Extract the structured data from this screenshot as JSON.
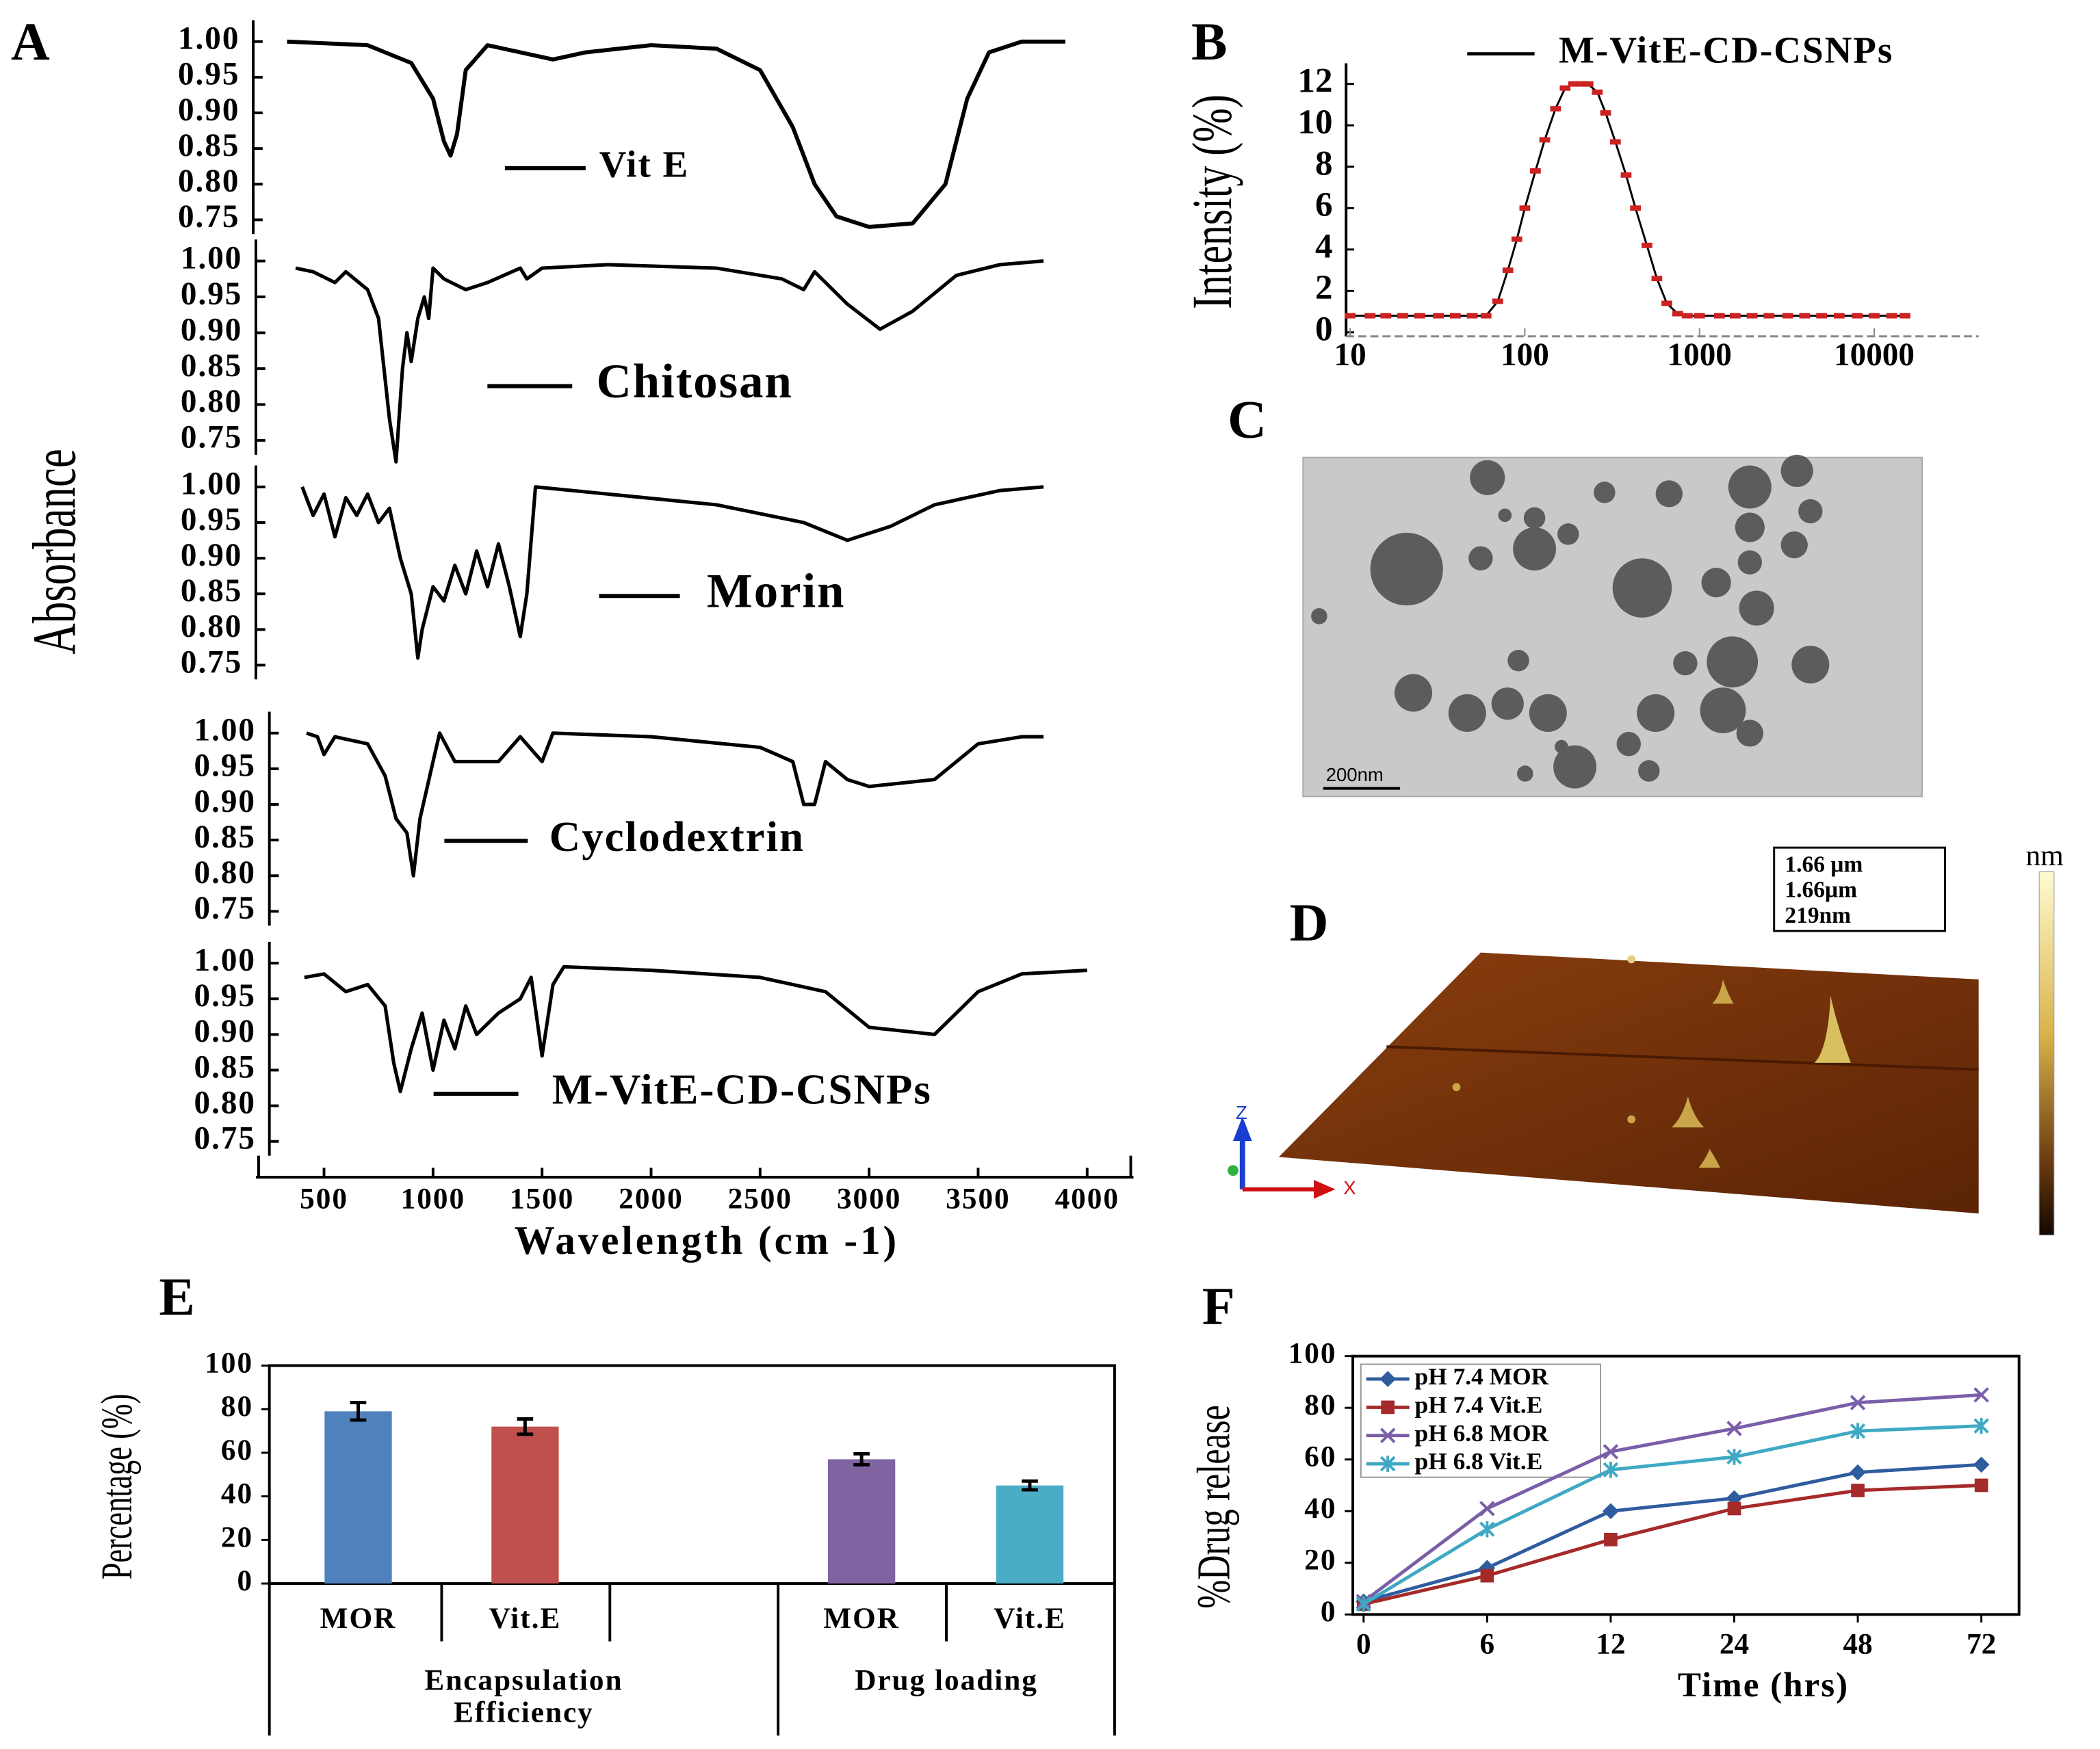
{
  "chart_data": [
    {
      "type": "line",
      "panel": "A",
      "y_label": "Absorbance",
      "xlim": [
        200,
        4200
      ],
      "ylim": [
        0.73,
        1.03
      ],
      "yticks": [
        {
          "value": 1,
          "label": "1.00"
        },
        0.95,
        {
          "value": 0.9,
          "label": "0.90"
        },
        0.85,
        {
          "value": 0.8,
          "label": "0.80"
        },
        0.75
      ],
      "series": [
        {
          "name": "Vit E",
          "color": "#000000",
          "x": [
            330,
            700,
            900,
            1000,
            1050,
            1080,
            1110,
            1150,
            1250,
            1400,
            1550,
            1700,
            2000,
            2300,
            2500,
            2650,
            2750,
            2850,
            3000,
            3200,
            3350,
            3450,
            3550,
            3700,
            3900
          ],
          "values": [
            1.0,
            0.995,
            0.97,
            0.92,
            0.86,
            0.84,
            0.87,
            0.96,
            0.995,
            0.985,
            0.975,
            0.985,
            0.995,
            0.99,
            0.96,
            0.88,
            0.8,
            0.755,
            0.74,
            0.745,
            0.8,
            0.92,
            0.985,
            1.0,
            1.0
          ]
        }
      ]
    },
    {
      "type": "line",
      "xlim": [
        200,
        4200
      ],
      "ylim": [
        0.73,
        1.03
      ],
      "yticks": [
        {
          "value": 1,
          "label": "1.00"
        },
        0.95,
        {
          "value": 0.9,
          "label": "0.90"
        },
        0.85,
        {
          "value": 0.8,
          "label": "0.80"
        },
        0.75
      ],
      "series": [
        {
          "name": "Chitosan",
          "color": "#000000",
          "x": [
            370,
            450,
            550,
            600,
            700,
            750,
            800,
            830,
            860,
            880,
            900,
            930,
            960,
            980,
            1000,
            1050,
            1150,
            1250,
            1400,
            1430,
            1500,
            1800,
            2300,
            2600,
            2700,
            2750,
            2900,
            3050,
            3200,
            3400,
            3600,
            3800
          ],
          "values": [
            0.99,
            0.985,
            0.97,
            0.985,
            0.96,
            0.92,
            0.78,
            0.72,
            0.85,
            0.9,
            0.86,
            0.92,
            0.95,
            0.92,
            0.99,
            0.975,
            0.96,
            0.97,
            0.99,
            0.975,
            0.99,
            0.995,
            0.99,
            0.975,
            0.96,
            0.985,
            0.94,
            0.905,
            0.93,
            0.98,
            0.995,
            1.0
          ]
        }
      ]
    },
    {
      "type": "line",
      "xlim": [
        200,
        4200
      ],
      "ylim": [
        0.73,
        1.03
      ],
      "yticks": [
        {
          "value": 1,
          "label": "1.00"
        },
        0.95,
        {
          "value": 0.9,
          "label": "0.90"
        },
        0.85,
        {
          "value": 0.8,
          "label": "0.80"
        },
        0.75
      ],
      "series": [
        {
          "name": "Morin",
          "color": "#000000",
          "x": [
            400,
            450,
            500,
            550,
            600,
            650,
            700,
            750,
            800,
            850,
            900,
            930,
            950,
            1000,
            1050,
            1100,
            1150,
            1200,
            1250,
            1300,
            1350,
            1400,
            1430,
            1470,
            1800,
            2300,
            2700,
            2900,
            3100,
            3300,
            3600,
            3800
          ],
          "values": [
            1.0,
            0.96,
            0.99,
            0.93,
            0.985,
            0.96,
            0.99,
            0.95,
            0.97,
            0.9,
            0.85,
            0.76,
            0.8,
            0.86,
            0.84,
            0.89,
            0.85,
            0.91,
            0.86,
            0.92,
            0.86,
            0.79,
            0.85,
            1.0,
            0.99,
            0.975,
            0.95,
            0.925,
            0.945,
            0.975,
            0.995,
            1.0
          ]
        }
      ]
    },
    {
      "type": "line",
      "xlim": [
        200,
        4200
      ],
      "ylim": [
        0.73,
        1.03
      ],
      "yticks": [
        {
          "value": 1,
          "label": "1.00"
        },
        0.95,
        {
          "value": 0.9,
          "label": "0.90"
        },
        0.85,
        {
          "value": 0.8,
          "label": "0.80"
        },
        0.75
      ],
      "series": [
        {
          "name": "Cyclodextrin",
          "color": "#000000",
          "x": [
            420,
            470,
            500,
            550,
            700,
            780,
            830,
            880,
            910,
            940,
            1000,
            1030,
            1100,
            1300,
            1400,
            1500,
            1550,
            2000,
            2500,
            2650,
            2700,
            2750,
            2800,
            2900,
            3000,
            3300,
            3500,
            3700,
            3800
          ],
          "values": [
            1.0,
            0.995,
            0.97,
            0.995,
            0.985,
            0.94,
            0.88,
            0.86,
            0.8,
            0.88,
            0.96,
            1.0,
            0.96,
            0.96,
            0.995,
            0.96,
            1.0,
            0.995,
            0.98,
            0.96,
            0.9,
            0.9,
            0.96,
            0.935,
            0.925,
            0.935,
            0.985,
            0.995,
            0.995
          ]
        }
      ]
    },
    {
      "type": "line",
      "x_label": "Wavelength (cm -1)",
      "xlim": [
        200,
        4200
      ],
      "xticks": [
        500,
        1000,
        1500,
        2000,
        2500,
        3000,
        3500,
        4000
      ],
      "ylim": [
        0.73,
        1.03
      ],
      "yticks": [
        {
          "value": 1,
          "label": "1.00"
        },
        0.95,
        {
          "value": 0.9,
          "label": "0.90"
        },
        0.85,
        {
          "value": 0.8,
          "label": "0.80"
        },
        0.75
      ],
      "series": [
        {
          "name": "M-VitE-CD-CSNPs",
          "color": "#000000",
          "x": [
            410,
            500,
            600,
            700,
            780,
            820,
            850,
            900,
            950,
            1000,
            1050,
            1100,
            1150,
            1200,
            1300,
            1400,
            1450,
            1500,
            1550,
            1600,
            2000,
            2500,
            2800,
            3000,
            3300,
            3500,
            3700,
            4000
          ],
          "values": [
            0.98,
            0.985,
            0.96,
            0.97,
            0.94,
            0.86,
            0.82,
            0.88,
            0.93,
            0.85,
            0.92,
            0.88,
            0.94,
            0.9,
            0.93,
            0.95,
            0.98,
            0.87,
            0.97,
            0.995,
            0.99,
            0.98,
            0.96,
            0.91,
            0.9,
            0.96,
            0.985,
            0.99
          ]
        }
      ]
    },
    {
      "type": "line",
      "panel": "B",
      "y_label": "Intensity (%)",
      "log_x": true,
      "xlim": [
        10,
        35000
      ],
      "xticks": [
        10,
        100,
        1000,
        10000
      ],
      "ylim": [
        0,
        13
      ],
      "yticks": [
        0,
        2,
        4,
        6,
        8,
        10,
        12
      ],
      "series": [
        {
          "name": "M-VitE-CD-CSNPs",
          "color": "#000000",
          "marker_color": "#cc2222",
          "x": [
            10,
            13,
            16,
            20,
            25,
            32,
            40,
            50,
            60,
            70,
            80,
            90,
            100,
            115,
            130,
            150,
            170,
            190,
            210,
            230,
            260,
            290,
            330,
            380,
            430,
            500,
            570,
            650,
            750,
            850,
            1000,
            1300,
            1600,
            2000,
            2500,
            3200,
            4000,
            5000,
            6300,
            8000,
            10000,
            12600,
            15000
          ],
          "values": [
            0.8,
            0.8,
            0.8,
            0.8,
            0.8,
            0.8,
            0.8,
            0.8,
            0.8,
            1.5,
            3,
            4.5,
            6,
            7.8,
            9.3,
            10.8,
            11.8,
            12,
            12,
            12,
            11.6,
            10.6,
            9.2,
            7.6,
            6,
            4.2,
            2.6,
            1.4,
            0.9,
            0.8,
            0.8,
            0.8,
            0.8,
            0.8,
            0.8,
            0.8,
            0.8,
            0.8,
            0.8,
            0.8,
            0.8,
            0.8,
            0.8
          ]
        }
      ]
    },
    {
      "type": "bar",
      "panel": "E",
      "y_label": "Percentage (%)",
      "categories": [
        "MOR",
        "Vit.E",
        "MOR",
        "Vit.E"
      ],
      "groups": [
        "Encapsulation Efficiency",
        "Drug loading"
      ],
      "values": [
        79,
        72,
        57,
        45
      ],
      "errors": [
        4,
        3.5,
        2.5,
        2
      ],
      "colors": [
        "#4f81bd",
        "#c0504d",
        "#8064a2",
        "#4bacc6"
      ],
      "ylim": [
        0,
        100
      ],
      "yticks": [
        0,
        20,
        40,
        60,
        80,
        100
      ]
    },
    {
      "type": "line",
      "panel": "F",
      "x_label": "Time (hrs)",
      "y_label": "%Drug release",
      "categories": [
        "0",
        "6",
        "12",
        "24",
        "48",
        "72"
      ],
      "ylim": [
        0,
        100
      ],
      "yticks": [
        0,
        20,
        40,
        60,
        80,
        100
      ],
      "legend": "top-left",
      "series": [
        {
          "name": "pH 7.4 MOR",
          "color": "#2e5c9e",
          "marker": "diamond",
          "values": [
            5,
            18,
            40,
            45,
            55,
            58
          ]
        },
        {
          "name": "pH 7.4 Vit.E",
          "color": "#a52a2a",
          "marker": "square",
          "values": [
            4,
            15,
            29,
            41,
            48,
            50
          ]
        },
        {
          "name": "pH 6.8 MOR",
          "color": "#7b5ea8",
          "marker": "x",
          "values": [
            5,
            41,
            63,
            72,
            82,
            85
          ]
        },
        {
          "name": "pH 6.8 Vit.E",
          "color": "#3fa9c4",
          "marker": "star",
          "values": [
            4,
            33,
            56,
            61,
            71,
            73
          ]
        }
      ]
    }
  ],
  "images": [
    {
      "panel": "C",
      "scale_bar": "200nm"
    },
    {
      "panel": "D",
      "info": [
        "1.66 µm",
        "1.66µm",
        "219nm"
      ],
      "colorbar_unit": "nm",
      "axes": [
        "Z",
        "X"
      ]
    }
  ]
}
